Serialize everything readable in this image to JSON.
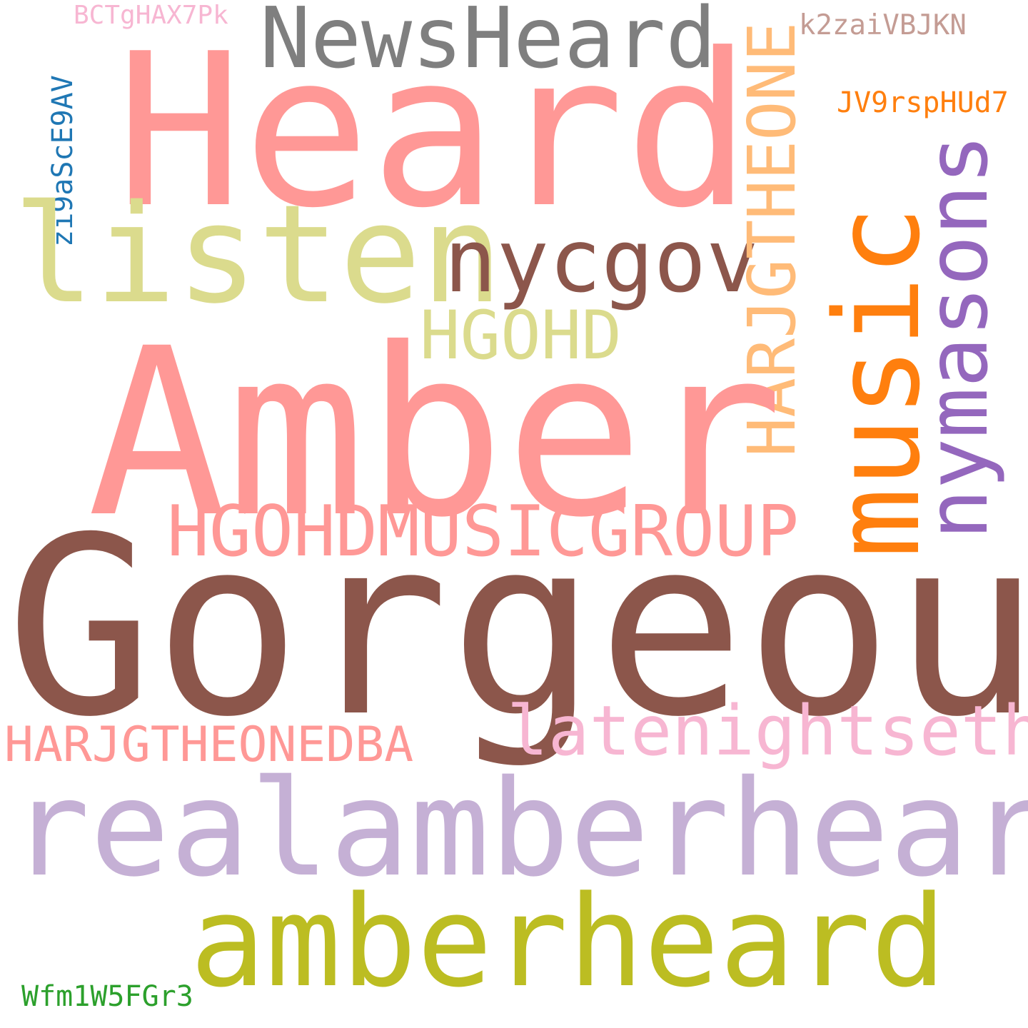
{
  "words": {
    "heard": {
      "text": "Heard",
      "color": "#ff9896"
    },
    "newsheard": {
      "text": "NewsHeard",
      "color": "#7f7f7f"
    },
    "bctg": {
      "text": "BCTgHAX7Pk",
      "color": "#f7b6d2"
    },
    "k2zai": {
      "text": "k2zaiVBJKN",
      "color": "#c49c94"
    },
    "jv9": {
      "text": "JV9rspHUd7",
      "color": "#ff7f0e"
    },
    "zi9": {
      "text": "zi9aScE9AV",
      "color": "#1f77b4"
    },
    "listen": {
      "text": "listen",
      "color": "#dbdb8d"
    },
    "nycgov": {
      "text": "nycgov",
      "color": "#8c564b"
    },
    "harjgtheone": {
      "text": "HARJGTHEONE",
      "color": "#ffbb78"
    },
    "music": {
      "text": "music",
      "color": "#ff7f0e"
    },
    "nymasons": {
      "text": "nymasons",
      "color": "#9467bd"
    },
    "hgohd": {
      "text": "HGOHD",
      "color": "#dbdb8d"
    },
    "amber": {
      "text": "Amber",
      "color": "#ff9896"
    },
    "hgohdmusic": {
      "text": "HGOHDMUSICGROUP",
      "color": "#ff9896"
    },
    "gorgeous": {
      "text": "Gorgeous",
      "color": "#8c564b"
    },
    "latenight": {
      "text": "latenightseth",
      "color": "#f7b6d2"
    },
    "harjgdba": {
      "text": "HARJGTHEONEDBA",
      "color": "#ff9896"
    },
    "realamber": {
      "text": "realamberheard",
      "color": "#c5b0d5"
    },
    "amberheard": {
      "text": "amberheard",
      "color": "#bcbd22"
    },
    "wfm": {
      "text": "Wfm1W5FGr3",
      "color": "#2ca02c"
    }
  }
}
